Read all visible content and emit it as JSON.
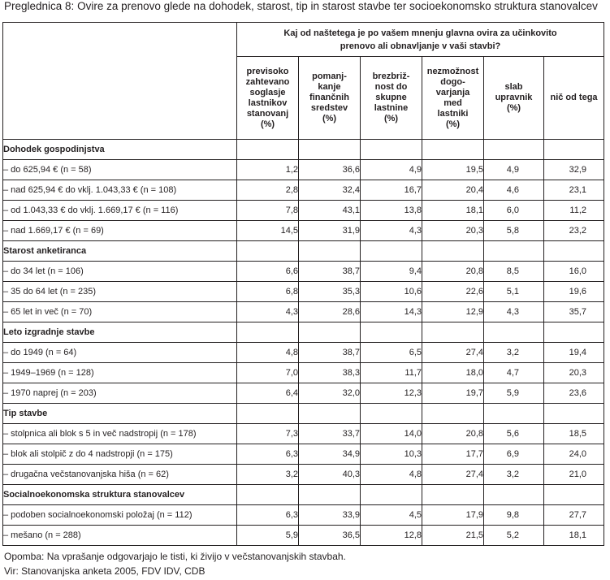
{
  "caption": {
    "label": "Preglednica 8:",
    "title": "Ovire za prenovo glede na dohodek, starost, tip in starost stavbe ter socioekonomsko struktura stanovalcev"
  },
  "table": {
    "question_line1": "Kaj od naštetega je po vašem mnenju glavna ovira za učinkovito",
    "question_line2": "prenovo ali obnavljanje v vaši stavbi?",
    "columns": [
      [
        "previsoko",
        "zahtevano",
        "soglasje",
        "lastnikov",
        "stanovanj",
        "(%)"
      ],
      [
        "pomanj-",
        "kanje",
        "finančnih",
        "sredstev",
        "(%)"
      ],
      [
        "brezbriž-",
        "nost do",
        "skupne",
        "lastnine",
        "(%)"
      ],
      [
        "nezmožnost",
        "dogo-",
        "varjanja",
        "med",
        "lastniki",
        "(%)"
      ],
      [
        "slab",
        "upravnik",
        "(%)"
      ],
      [
        "nič od tega"
      ]
    ],
    "sections": [
      {
        "title": "Dohodek gospodinjstva",
        "rows": [
          {
            "label": "– do 625,94 €  (n = 58)",
            "values": [
              "1,2",
              "36,6",
              "4,9",
              "19,5",
              "4,9",
              "32,9"
            ]
          },
          {
            "label": "– nad 625,94 € do vklj. 1.043,33 € (n = 108)",
            "values": [
              "2,8",
              "32,4",
              "16,7",
              "20,4",
              "4,6",
              "23,1"
            ]
          },
          {
            "label": "– od 1.043,33 € do vklj. 1.669,17 € (n = 116)",
            "values": [
              "7,8",
              "43,1",
              "13,8",
              "18,1",
              "6,0",
              "11,2"
            ]
          },
          {
            "label": "– nad 1.669,17 € (n = 69)",
            "values": [
              "14,5",
              "31,9",
              "4,3",
              "20,3",
              "5,8",
              "23,2"
            ]
          }
        ]
      },
      {
        "title": "Starost anketiranca",
        "rows": [
          {
            "label": "– do 34 let (n = 106)",
            "values": [
              "6,6",
              "38,7",
              "9,4",
              "20,8",
              "8,5",
              "16,0"
            ]
          },
          {
            "label": "– 35 do 64 let (n = 235)",
            "values": [
              "6,8",
              "35,3",
              "10,6",
              "22,6",
              "5,1",
              "19,6"
            ]
          },
          {
            "label": "– 65 let in več (n = 70)",
            "values": [
              "4,3",
              "28,6",
              "14,3",
              "12,9",
              "4,3",
              "35,7"
            ]
          }
        ]
      },
      {
        "title": "Leto izgradnje stavbe",
        "rows": [
          {
            "label": "– do 1949 (n = 64)",
            "values": [
              "4,8",
              "38,7",
              "6,5",
              "27,4",
              "3,2",
              "19,4"
            ]
          },
          {
            "label": "– 1949–1969 (n = 128)",
            "values": [
              "7,0",
              "38,3",
              "11,7",
              "18,0",
              "4,7",
              "20,3"
            ]
          },
          {
            "label": "– 1970 naprej (n = 203)",
            "values": [
              "6,4",
              "32,0",
              "12,3",
              "19,7",
              "5,9",
              "23,6"
            ]
          }
        ]
      },
      {
        "title": "Tip stavbe",
        "rows": [
          {
            "label": "– stolpnica ali blok s 5 in več nadstropij (n = 178)",
            "values": [
              "7,3",
              "33,7",
              "14,0",
              "20,8",
              "5,6",
              "18,5"
            ]
          },
          {
            "label": "– blok ali stolpič z do 4 nadstropji (n = 175)",
            "values": [
              "6,3",
              "34,9",
              "10,3",
              "17,7",
              "6,9",
              "24,0"
            ]
          },
          {
            "label": "– drugačna večstanovanjska hiša (n = 62)",
            "values": [
              "3,2",
              "40,3",
              "4,8",
              "27,4",
              "3,2",
              "21,0"
            ]
          }
        ]
      },
      {
        "title": "Socialnoekonomska struktura stanovalcev",
        "rows": [
          {
            "label": "– podoben socialnoekonomski položaj (n = 112)",
            "values": [
              "6,3",
              "33,9",
              "4,5",
              "17,9",
              "9,8",
              "27,7"
            ]
          },
          {
            "label": "– mešano (n = 288)",
            "values": [
              "5,9",
              "36,5",
              "12,8",
              "21,5",
              "5,2",
              "18,1"
            ]
          }
        ]
      }
    ]
  },
  "notes": {
    "note": "Opomba: Na vprašanje odgovarjajo le tisti, ki živijo v večstanovanjskih stavbah.",
    "source": "Vir: Stanovanjska anketa 2005, FDV IDV, CDB"
  }
}
